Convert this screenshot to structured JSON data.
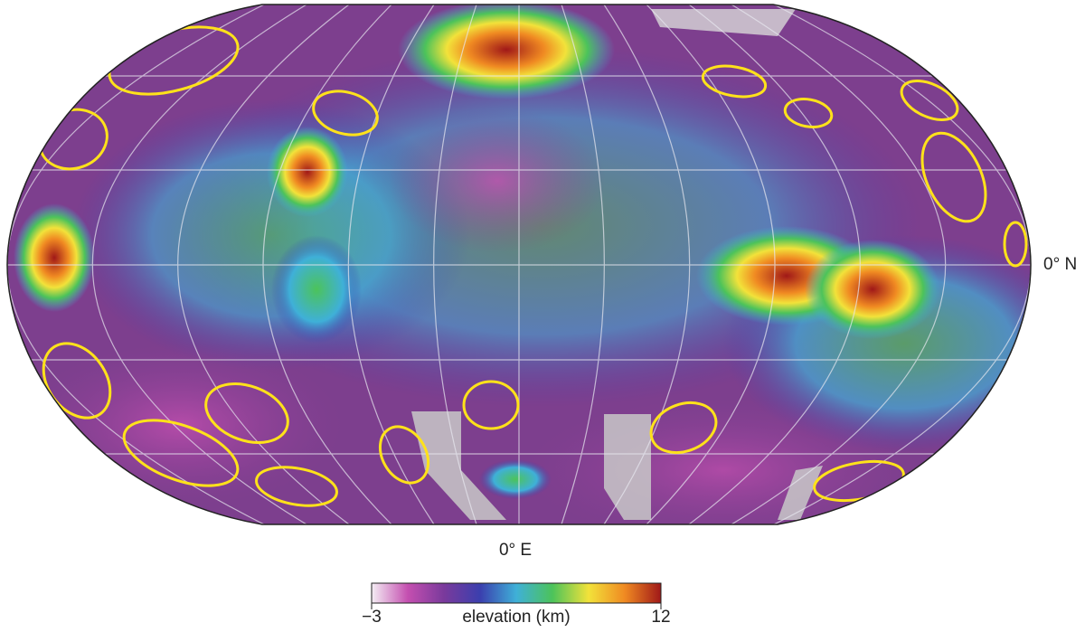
{
  "map": {
    "equator_label": "0° N",
    "meridian_label": "0° E"
  },
  "colorbar": {
    "label": "elevation (km)",
    "lim": [
      -3,
      12
    ],
    "ticks": [
      {
        "value": -3,
        "label": "−3"
      },
      12
    ],
    "colors": [
      "#f4eef4",
      "#c44fb0",
      "#7a3a9c",
      "#3b3fae",
      "#3fb0d8",
      "#4cc35a",
      "#f2e23a",
      "#f08a22",
      "#a01818"
    ]
  }
}
